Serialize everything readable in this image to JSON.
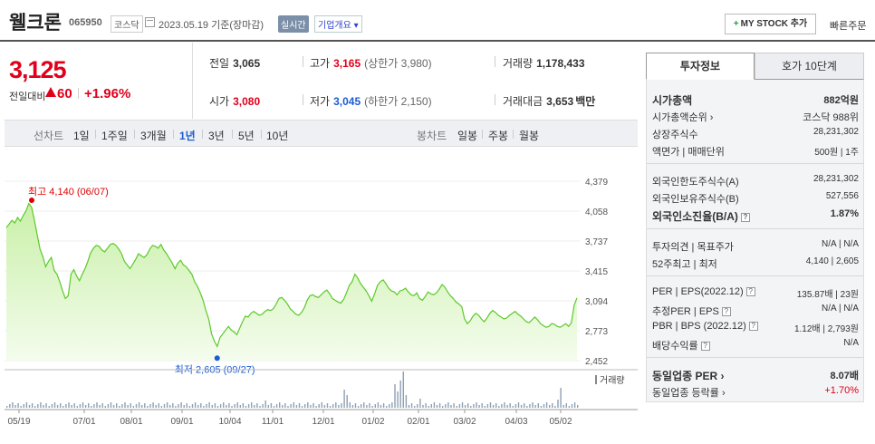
{
  "header": {
    "name": "웰크론",
    "code": "065950",
    "market": "코스닥",
    "date": "2023.05.19 기준(장마감)",
    "realtime": "실시간",
    "overview": "기업개요",
    "my_stock": "MY STOCK 추가",
    "quick_order": "빠른주문"
  },
  "price": {
    "current": "3,125",
    "change_label": "전일대비",
    "change": "60",
    "change_pct": "+1.96%"
  },
  "stats": {
    "prev_close_label": "전일",
    "prev_close": "3,065",
    "high_label": "고가",
    "high": "3,165",
    "upper_limit": "(상한가 3,980)",
    "volume_label": "거래량",
    "volume": "1,178,433",
    "open_label": "시가",
    "open": "3,080",
    "low_label": "저가",
    "low": "3,045",
    "lower_limit": "(하한가 2,150)",
    "amount_label": "거래대금",
    "amount": "3,653",
    "amount_unit": "백만"
  },
  "period_bar": {
    "line_label": "선차트",
    "periods": [
      "1일",
      "1주일",
      "3개월",
      "1년",
      "3년",
      "5년",
      "10년"
    ],
    "active_period": "1년",
    "candle_label": "봉차트",
    "candles": [
      "일봉",
      "주봉",
      "월봉"
    ]
  },
  "tabs": {
    "invest_info": "투자정보",
    "quote10": "호가 10단계"
  },
  "info": {
    "market_cap_label": "시가총액",
    "market_cap": "882억원",
    "market_cap_rank_label": "시가총액순위",
    "market_cap_rank": "코스닥 988위",
    "shares_label": "상장주식수",
    "shares": "28,231,302",
    "par_label": "액면가 | 매매단위",
    "par": "500원 | 1주",
    "foreign_limit_label": "외국인한도주식수(A)",
    "foreign_limit": "28,231,302",
    "foreign_hold_label": "외국인보유주식수(B)",
    "foreign_hold": "527,556",
    "foreign_ratio_label": "외국인소진율(B/A)",
    "foreign_ratio": "1.87%",
    "opinion_label": "투자의견 | 목표주가",
    "opinion": "N/A | N/A",
    "w52_label": "52주최고 | 최저",
    "w52": "4,140 | 2,605",
    "per_label": "PER | EPS(2022.12)",
    "per": "135.87배 | 23원",
    "est_per_label": "추정PER | EPS",
    "est_per": "N/A | N/A",
    "pbr_label": "PBR | BPS (2022.12)",
    "pbr": "1.12배 | 2,793원",
    "div_label": "배당수익률",
    "div": "N/A",
    "industry_per_label": "동일업종 PER",
    "industry_per": "8.07배",
    "industry_chg_label": "동일업종 등락률",
    "industry_chg": "+1.70%"
  },
  "chart_data": {
    "type": "area",
    "y_ticks": [
      "4,379",
      "4,058",
      "3,737",
      "3,415",
      "3,094",
      "2,773",
      "2,452"
    ],
    "ylim": [
      2452,
      4379
    ],
    "x_ticks": [
      "05/19",
      "07/01",
      "08/01",
      "09/01",
      "10/04",
      "11/01",
      "12/01",
      "01/02",
      "02/01",
      "03/02",
      "04/03",
      "05/02"
    ],
    "max_label": "최고 4,140 (06/07)",
    "min_label": "최저 2,605 (09/27)",
    "volume_label": "거래량",
    "values": [
      3880,
      3920,
      3960,
      3930,
      3990,
      3950,
      4010,
      4060,
      4140,
      4100,
      3960,
      3800,
      3650,
      3570,
      3460,
      3520,
      3560,
      3420,
      3380,
      3300,
      3200,
      3120,
      3150,
      3380,
      3430,
      3360,
      3310,
      3380,
      3440,
      3520,
      3610,
      3660,
      3690,
      3680,
      3640,
      3620,
      3660,
      3700,
      3710,
      3690,
      3650,
      3600,
      3520,
      3480,
      3440,
      3490,
      3540,
      3600,
      3580,
      3560,
      3590,
      3650,
      3690,
      3680,
      3660,
      3700,
      3640,
      3600,
      3550,
      3500,
      3440,
      3500,
      3530,
      3480,
      3460,
      3420,
      3380,
      3300,
      3250,
      3180,
      3100,
      2990,
      2900,
      2740,
      2660,
      2605,
      2700,
      2740,
      2780,
      2820,
      2780,
      2760,
      2730,
      2800,
      2870,
      2930,
      2920,
      2960,
      2980,
      2960,
      2940,
      2950,
      2980,
      3000,
      2990,
      3010,
      3060,
      3120,
      3130,
      3100,
      3060,
      3010,
      2980,
      2950,
      2940,
      2970,
      3020,
      3100,
      3150,
      3160,
      3140,
      3130,
      3160,
      3190,
      3210,
      3170,
      3120,
      3100,
      3080,
      3070,
      3110,
      3180,
      3260,
      3300,
      3380,
      3340,
      3280,
      3240,
      3200,
      3150,
      3090,
      3170,
      3260,
      3300,
      3320,
      3280,
      3230,
      3200,
      3190,
      3160,
      3200,
      3210,
      3230,
      3190,
      3160,
      3150,
      3180,
      3120,
      3100,
      3140,
      3190,
      3170,
      3160,
      3180,
      3220,
      3270,
      3240,
      3190,
      3150,
      3120,
      3080,
      3060,
      3030,
      2900,
      2850,
      2880,
      2930,
      2960,
      2940,
      2900,
      2870,
      2910,
      2960,
      2990,
      2970,
      2940,
      2920,
      2900,
      2910,
      2940,
      2960,
      2980,
      2950,
      2930,
      2900,
      2870,
      2860,
      2890,
      2920,
      2890,
      2850,
      2830,
      2810,
      2820,
      2850,
      2840,
      2820,
      2810,
      2830,
      2850,
      2820,
      2860,
      3050,
      3125
    ]
  }
}
